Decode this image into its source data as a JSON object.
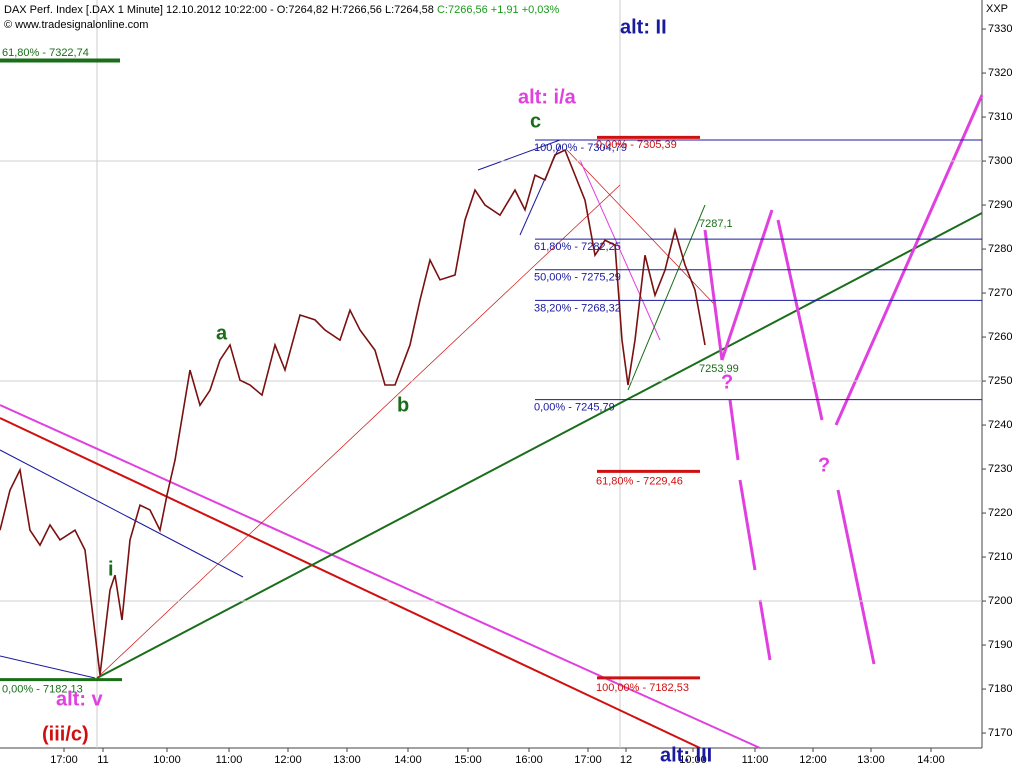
{
  "header": {
    "instrument": "DAX Perf. Index [.DAX  1 Minute] 12.10.2012 10:22:00 -",
    "ohl": "O:7264,82 H:7266,56 L:7264,58",
    "change": "C:7266,56 +1,91 +0,03%",
    "copyright": "© www.tradesignalonline.com",
    "corner": "XXP"
  },
  "chart_data": {
    "type": "line",
    "x": [
      0,
      10,
      20,
      30,
      40,
      50,
      60,
      75,
      85,
      97,
      100,
      110,
      115,
      122,
      130,
      140,
      150,
      160,
      167,
      175,
      185,
      190,
      200,
      210,
      220,
      230,
      240,
      250,
      262,
      275,
      285,
      300,
      315,
      325,
      340,
      350,
      360,
      375,
      385,
      395,
      410,
      420,
      430,
      440,
      455,
      465,
      475,
      485,
      500,
      515,
      525,
      535,
      545,
      555,
      565,
      575,
      585,
      595,
      605,
      615,
      622,
      628,
      635,
      645,
      655,
      665,
      675,
      685,
      695,
      705
    ],
    "series": [
      {
        "name": "DAX",
        "color": "#7a1010",
        "values": [
          7216.1,
          7225.2,
          7229.8,
          7216.1,
          7212.7,
          7217.3,
          7213.9,
          7216.1,
          7211.6,
          7188.9,
          7183.2,
          7202.5,
          7205.9,
          7195.7,
          7213.9,
          7221.8,
          7220.7,
          7216.1,
          7224.1,
          7232.0,
          7245.7,
          7252.5,
          7244.5,
          7247.9,
          7254.8,
          7258.2,
          7250.2,
          7249.1,
          7246.8,
          7258.2,
          7252.5,
          7265.0,
          7263.9,
          7261.6,
          7259.3,
          7266.1,
          7261.6,
          7257.0,
          7249.1,
          7249.1,
          7258.2,
          7268.4,
          7277.5,
          7273.0,
          7274.1,
          7286.6,
          7293.4,
          7290.0,
          7287.7,
          7293.4,
          7288.9,
          7296.8,
          7295.7,
          7301.4,
          7302.5,
          7296.8,
          7291.1,
          7278.6,
          7282.0,
          7280.9,
          7259.3,
          7249.1,
          7259.3,
          7278.6,
          7269.5,
          7275.2,
          7284.3,
          7276.4,
          7270.7,
          7258.2
        ]
      }
    ],
    "xlim": [
      0,
      982
    ],
    "xticks": [
      {
        "value": 64,
        "label": "17:00"
      },
      {
        "value": 103,
        "label": "11"
      },
      {
        "value": 167,
        "label": "10:00"
      },
      {
        "value": 229,
        "label": "11:00"
      },
      {
        "value": 288,
        "label": "12:00"
      },
      {
        "value": 347,
        "label": "13:00"
      },
      {
        "value": 408,
        "label": "14:00"
      },
      {
        "value": 468,
        "label": "15:00"
      },
      {
        "value": 529,
        "label": "16:00"
      },
      {
        "value": 588,
        "label": "17:00"
      },
      {
        "value": 626,
        "label": "12"
      },
      {
        "value": 693,
        "label": "10:00"
      },
      {
        "value": 755,
        "label": "11:00"
      },
      {
        "value": 813,
        "label": "12:00"
      },
      {
        "value": 871,
        "label": "13:00"
      },
      {
        "value": 931,
        "label": "14:00"
      }
    ],
    "ylim": [
      7166.6,
      7336.6
    ],
    "yticks": [
      7170,
      7180,
      7190,
      7200,
      7210,
      7220,
      7230,
      7240,
      7250,
      7260,
      7270,
      7280,
      7290,
      7300,
      7310,
      7320,
      7330
    ],
    "levels": [
      {
        "value": 7322.74,
        "label": "61,80% - 7322,74",
        "color": "#1a6e1a"
      },
      {
        "value": 7304.79,
        "label": "100,00% - 7304,79",
        "color": "#1a1aa0"
      },
      {
        "value": 7305.39,
        "label": "0,00% - 7305,39",
        "color": "#d01010"
      },
      {
        "value": 7282.25,
        "label": "61,80% - 7282,25",
        "color": "#1a1aa0"
      },
      {
        "value": 7275.29,
        "label": "50,00% - 7275,29",
        "color": "#1a1aa0"
      },
      {
        "value": 7268.32,
        "label": "38,20% - 7268,32",
        "color": "#1a1aa0"
      },
      {
        "value": 7245.79,
        "label": "0,00% - 7245,79",
        "color": "#1a1aa0"
      },
      {
        "value": 7229.46,
        "label": "61,80% - 7229,46",
        "color": "#d01010"
      },
      {
        "value": 7182.53,
        "label": "100,00% - 7182,53",
        "color": "#d01010"
      },
      {
        "value": 7182.13,
        "label": "0,00% - 7182,13",
        "color": "#1a6e1a"
      }
    ],
    "annotations": [
      "alt: II",
      "alt: i/a",
      "c",
      "a",
      "b",
      "i",
      "alt: v",
      "(iii/c)",
      "?",
      "?",
      "7287,1",
      "7253,99",
      "alt: III"
    ]
  }
}
